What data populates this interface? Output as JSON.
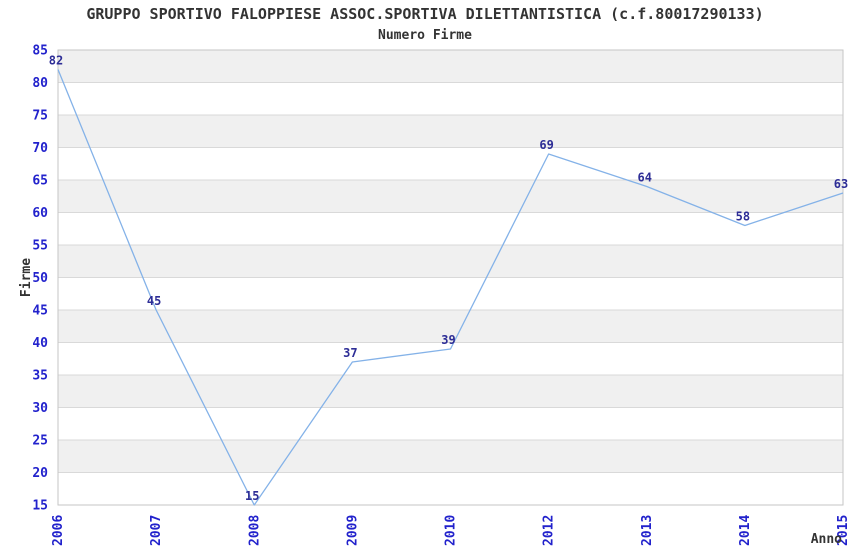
{
  "chart_data": {
    "type": "line",
    "title": "GRUPPO SPORTIVO FALOPPIESE ASSOC.SPORTIVA DILETTANTISTICA (c.f.80017290133)",
    "subtitle": "Numero Firme",
    "xlabel": "Anno",
    "ylabel": "Firme",
    "categories": [
      "2006",
      "2007",
      "2008",
      "2009",
      "2010",
      "2012",
      "2013",
      "2014",
      "2015"
    ],
    "series": [
      {
        "name": "Numero Firme",
        "values": [
          82,
          45,
          15,
          37,
          39,
          69,
          64,
          58,
          63
        ]
      }
    ],
    "ylim": [
      15,
      85
    ],
    "ytick_step": 5,
    "yticks": [
      15,
      20,
      25,
      30,
      35,
      40,
      45,
      50,
      55,
      60,
      65,
      70,
      75,
      80,
      85
    ],
    "grid": true,
    "legend_position": "none",
    "colors": {
      "line": "#84b2e8",
      "tick_label": "#2222cc",
      "point_label": "#2d2d96",
      "axis_title": "#333333",
      "band_gray": "#f0f0f0",
      "band_white": "#ffffff",
      "grid_line": "#d9d9d9",
      "plot_border": "#c6c6c6"
    }
  }
}
